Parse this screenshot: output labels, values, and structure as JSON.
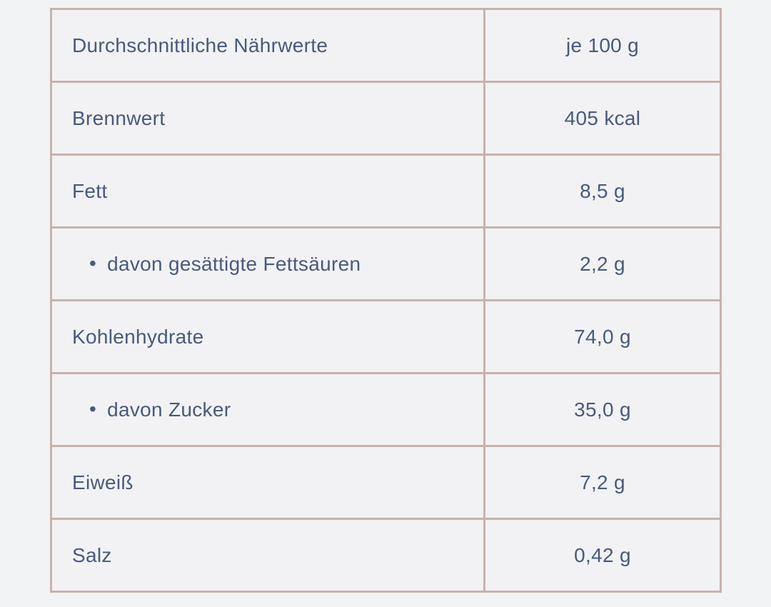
{
  "table": {
    "rows": [
      {
        "label": "Durchschnittliche Nährwerte",
        "value": "je 100 g",
        "indent": false
      },
      {
        "label": "Brennwert",
        "value": "405 kcal",
        "indent": false
      },
      {
        "label": "Fett",
        "value": "8,5 g",
        "indent": false
      },
      {
        "label": "davon gesättigte Fettsäuren",
        "value": "2,2 g",
        "indent": true
      },
      {
        "label": "Kohlenhydrate",
        "value": "74,0 g",
        "indent": false
      },
      {
        "label": "davon Zucker",
        "value": "35,0 g",
        "indent": true
      },
      {
        "label": "Eiweiß",
        "value": "7,2 g",
        "indent": false
      },
      {
        "label": "Salz",
        "value": "0,42 g",
        "indent": false
      }
    ],
    "glyphs": {
      "bullet": "•"
    },
    "colors": {
      "border": "#c7b2ac",
      "text": "#485a7c",
      "page_background": "#f2f3f4",
      "cell_background": "#f2f2f4"
    }
  }
}
